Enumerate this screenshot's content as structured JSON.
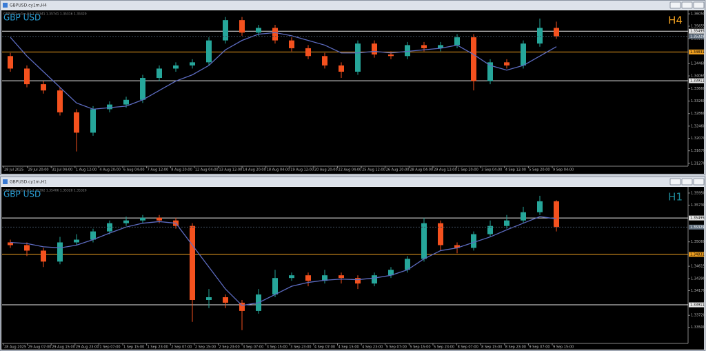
{
  "chart_data": [
    {
      "type": "candlestick",
      "window_title": "GBPUSD.cy1m,H4",
      "info": "GBPUSD.cy1m,H4 1.35341 1.35741 1.35316 1.35329",
      "symbol_label": "GBP USD",
      "timeframe_label": "H4",
      "timeframe_color": "#f0a020",
      "up_color": "#26a69a",
      "down_color": "#f4511e",
      "ma_color": "#5c6bc0",
      "ylim": [
        1.312,
        1.3614
      ],
      "yticks": [
        {
          "value": 1.3605,
          "label": "1.36050"
        },
        {
          "value": 1.35655,
          "label": "1.35655"
        },
        {
          "value": 1.3526,
          "label": "1.35260"
        },
        {
          "value": 1.3446,
          "label": "1.34460"
        },
        {
          "value": 1.34065,
          "label": "1.34065"
        },
        {
          "value": 1.3366,
          "label": "1.33660"
        },
        {
          "value": 1.3326,
          "label": "1.33260"
        },
        {
          "value": 1.3286,
          "label": "1.32860"
        },
        {
          "value": 1.3246,
          "label": "1.32460"
        },
        {
          "value": 1.3207,
          "label": "1.32070"
        },
        {
          "value": 1.3167,
          "label": "1.31670"
        },
        {
          "value": 1.3127,
          "label": "1.31270"
        }
      ],
      "levels": [
        {
          "value": 1.35495,
          "label": "1.35495",
          "color": "#e8e8e8"
        },
        {
          "value": 1.34831,
          "label": "1.34831",
          "color": "#f0a020"
        },
        {
          "value": 1.33911,
          "label": "1.33911",
          "color": "#e8e8e8"
        }
      ],
      "current_price": {
        "value": 1.35329,
        "label": "1.35329"
      },
      "xtick_labels": [
        "28 Jul 2025",
        "29 Jul 20:00",
        "31 Jul 04:00",
        "1 Aug 12:00",
        "4 Aug 20:00",
        "6 Aug 04:00",
        "7 Aug 12:00",
        "8 Aug 20:00",
        "12 Aug 04:00",
        "13 Aug 12:00",
        "14 Aug 20:00",
        "18 Aug 04:00",
        "19 Aug 12:00",
        "20 Aug 20:00",
        "22 Aug 04:00",
        "25 Aug 12:00",
        "26 Aug 20:00",
        "28 Aug 04:00",
        "29 Aug 12:00",
        "1 Sep 20:00",
        "3 Sep 04:00",
        "4 Sep 12:00",
        "5 Sep 20:00",
        "9 Sep 04:00"
      ],
      "open": [
        1.347,
        1.343,
        1.338,
        1.336,
        1.329,
        1.3225,
        1.33,
        1.3315,
        1.333,
        1.34,
        1.343,
        1.344,
        1.345,
        1.352,
        1.3585,
        1.3545,
        1.356,
        1.352,
        1.3495,
        1.347,
        1.344,
        1.342,
        1.351,
        1.3475,
        1.347,
        1.3505,
        1.3495,
        1.3505,
        1.353,
        1.339,
        1.345,
        1.344,
        1.351,
        1.356
      ],
      "high": [
        1.348,
        1.344,
        1.339,
        1.337,
        1.33,
        1.331,
        1.3325,
        1.334,
        1.341,
        1.344,
        1.345,
        1.346,
        1.353,
        1.3595,
        1.3595,
        1.357,
        1.357,
        1.353,
        1.3505,
        1.348,
        1.345,
        1.352,
        1.352,
        1.3485,
        1.3515,
        1.3515,
        1.3515,
        1.354,
        1.354,
        1.346,
        1.346,
        1.352,
        1.359,
        1.358
      ],
      "low": [
        1.342,
        1.337,
        1.335,
        1.328,
        1.3165,
        1.3215,
        1.329,
        1.3305,
        1.332,
        1.339,
        1.342,
        1.343,
        1.344,
        1.351,
        1.3535,
        1.3535,
        1.351,
        1.3485,
        1.346,
        1.343,
        1.34,
        1.341,
        1.3465,
        1.346,
        1.346,
        1.3485,
        1.3485,
        1.3495,
        1.336,
        1.338,
        1.343,
        1.343,
        1.35,
        1.3525
      ],
      "close": [
        1.343,
        1.338,
        1.336,
        1.329,
        1.3225,
        1.33,
        1.3315,
        1.333,
        1.34,
        1.343,
        1.344,
        1.345,
        1.352,
        1.3585,
        1.3545,
        1.356,
        1.352,
        1.3495,
        1.347,
        1.344,
        1.342,
        1.351,
        1.3475,
        1.347,
        1.3505,
        1.3495,
        1.3505,
        1.353,
        1.339,
        1.345,
        1.344,
        1.351,
        1.356,
        1.3533
      ],
      "ma": [
        1.353,
        1.347,
        1.342,
        1.337,
        1.332,
        1.33,
        1.3305,
        1.331,
        1.333,
        1.336,
        1.339,
        1.341,
        1.344,
        1.349,
        1.352,
        1.354,
        1.3545,
        1.3535,
        1.352,
        1.3505,
        1.348,
        1.348,
        1.3485,
        1.348,
        1.3485,
        1.349,
        1.3495,
        1.3505,
        1.3475,
        1.344,
        1.3425,
        1.344,
        1.347,
        1.35
      ]
    },
    {
      "type": "candlestick",
      "window_title": "GBPUSD.cy1m,H1",
      "info": "GBPUSD.cy1m,H1 1.35392 1.35406 1.35328 1.35329",
      "symbol_label": "GBP USD",
      "timeframe_label": "H1",
      "timeframe_color": "#1e8a9a",
      "up_color": "#26a69a",
      "down_color": "#f4511e",
      "ma_color": "#5c6bc0",
      "ylim": [
        1.3322,
        1.3605
      ],
      "yticks": [
        {
          "value": 1.3595,
          "label": "1.35950"
        },
        {
          "value": 1.3573,
          "label": "1.35730"
        },
        {
          "value": 1.3506,
          "label": "1.35060"
        },
        {
          "value": 1.34615,
          "label": "1.34615"
        },
        {
          "value": 1.3439,
          "label": "1.34390"
        },
        {
          "value": 1.3417,
          "label": "1.34170"
        },
        {
          "value": 1.3372,
          "label": "1.33720"
        },
        {
          "value": 1.335,
          "label": "1.33500"
        }
      ],
      "levels": [
        {
          "value": 1.35495,
          "label": "1.35495",
          "color": "#e8e8e8"
        },
        {
          "value": 1.34831,
          "label": "1.34831",
          "color": "#f0a020"
        },
        {
          "value": 1.33911,
          "label": "1.33911",
          "color": "#e8e8e8"
        }
      ],
      "current_price": {
        "value": 1.35329,
        "label": "1.35329"
      },
      "xtick_labels": [
        "28 Aug 2025",
        "29 Aug 07:00",
        "29 Aug 15:00",
        "29 Aug 23:00",
        "1 Sep 07:00",
        "1 Sep 15:00",
        "1 Sep 23:00",
        "2 Sep 07:00",
        "2 Sep 15:00",
        "2 Sep 23:00",
        "3 Sep 07:00",
        "3 Sep 15:00",
        "3 Sep 23:00",
        "4 Sep 07:00",
        "4 Sep 15:00",
        "4 Sep 23:00",
        "5 Sep 07:00",
        "5 Sep 15:00",
        "5 Sep 23:00",
        "8 Sep 07:00",
        "8 Sep 15:00",
        "8 Sep 23:00",
        "9 Sep 07:00",
        "9 Sep 15:00"
      ],
      "open": [
        1.3505,
        1.35,
        1.349,
        1.347,
        1.3505,
        1.351,
        1.3525,
        1.354,
        1.3545,
        1.355,
        1.3545,
        1.3535,
        1.34,
        1.3405,
        1.3395,
        1.338,
        1.341,
        1.344,
        1.3445,
        1.3435,
        1.3445,
        1.344,
        1.343,
        1.3445,
        1.3455,
        1.3475,
        1.354,
        1.35,
        1.3495,
        1.352,
        1.3535,
        1.3545,
        1.356,
        1.358
      ],
      "high": [
        1.351,
        1.3505,
        1.3495,
        1.3515,
        1.352,
        1.353,
        1.3545,
        1.3552,
        1.3555,
        1.3555,
        1.355,
        1.354,
        1.342,
        1.341,
        1.34,
        1.342,
        1.3455,
        1.345,
        1.345,
        1.3455,
        1.345,
        1.3445,
        1.345,
        1.346,
        1.348,
        1.355,
        1.3545,
        1.3505,
        1.3525,
        1.3545,
        1.3555,
        1.357,
        1.359,
        1.3582
      ],
      "low": [
        1.3495,
        1.348,
        1.346,
        1.3465,
        1.35,
        1.3505,
        1.352,
        1.3535,
        1.354,
        1.354,
        1.353,
        1.336,
        1.3385,
        1.3385,
        1.3345,
        1.3375,
        1.3405,
        1.3435,
        1.3425,
        1.343,
        1.343,
        1.342,
        1.3425,
        1.344,
        1.345,
        1.347,
        1.349,
        1.3485,
        1.349,
        1.3515,
        1.353,
        1.354,
        1.3555,
        1.3525
      ],
      "close": [
        1.35,
        1.349,
        1.347,
        1.3505,
        1.351,
        1.3525,
        1.354,
        1.3545,
        1.355,
        1.3545,
        1.3535,
        1.34,
        1.3405,
        1.3395,
        1.338,
        1.341,
        1.344,
        1.3445,
        1.3435,
        1.3445,
        1.344,
        1.343,
        1.3445,
        1.3455,
        1.3475,
        1.354,
        1.35,
        1.3495,
        1.352,
        1.3535,
        1.3545,
        1.356,
        1.358,
        1.3533
      ],
      "ma": [
        1.3505,
        1.3503,
        1.3497,
        1.3495,
        1.35,
        1.351,
        1.3522,
        1.3533,
        1.354,
        1.3543,
        1.354,
        1.35,
        1.346,
        1.342,
        1.339,
        1.3395,
        1.341,
        1.3425,
        1.3432,
        1.3436,
        1.3438,
        1.3437,
        1.344,
        1.3445,
        1.3455,
        1.3475,
        1.349,
        1.3495,
        1.3505,
        1.3515,
        1.3528,
        1.354,
        1.3552,
        1.3548
      ]
    }
  ]
}
